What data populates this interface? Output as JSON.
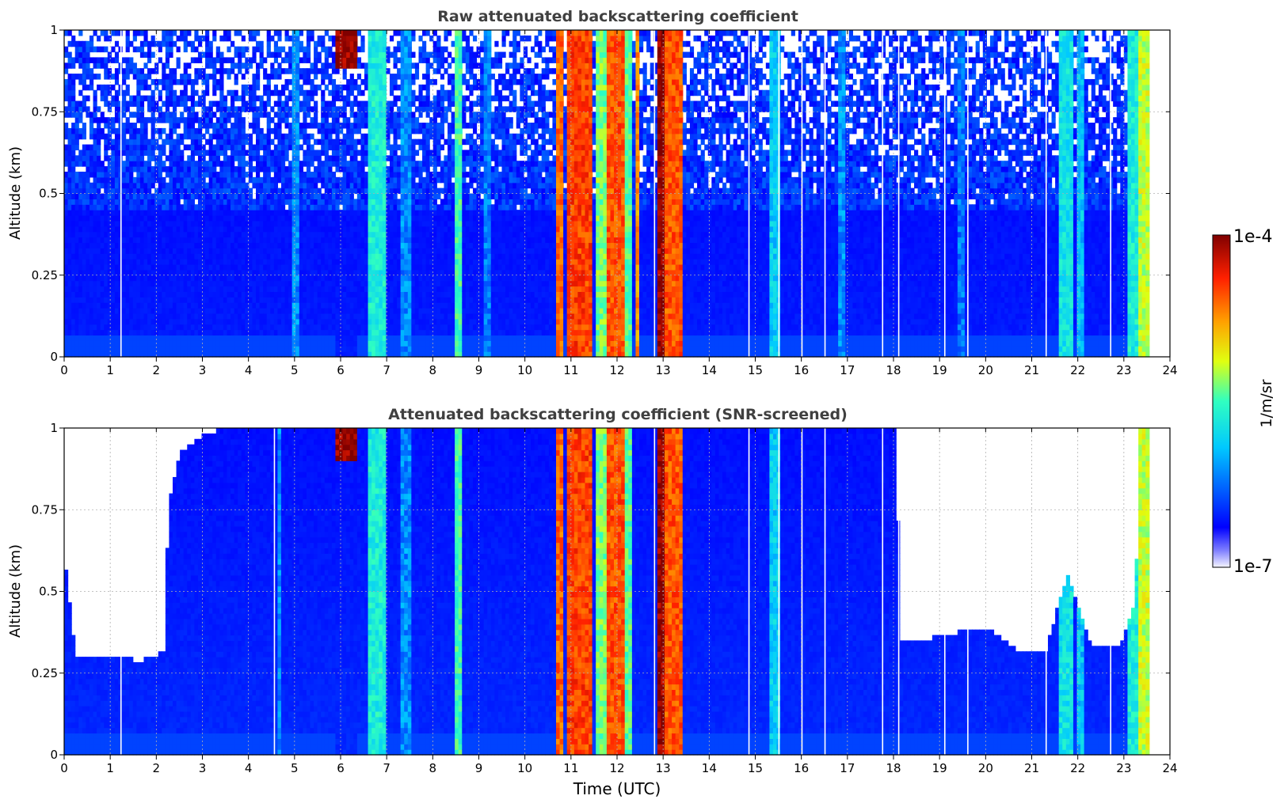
{
  "chart_data": {
    "type": "heatmap",
    "colorbar": {
      "label": "1/m/sr",
      "max_label": "1e-4",
      "min_label": "1e-7",
      "scale": "log",
      "range": [
        1e-07,
        0.0001
      ]
    },
    "panels": [
      {
        "id": "raw",
        "title": "Raw attenuated backscattering coefficient",
        "ylabel": "Altitude (km)",
        "xlabel": "",
        "xlim": [
          0,
          24
        ],
        "ylim": [
          0,
          1
        ],
        "xticks": [
          "0",
          "1",
          "2",
          "3",
          "4",
          "5",
          "6",
          "7",
          "8",
          "9",
          "10",
          "11",
          "12",
          "13",
          "14",
          "15",
          "16",
          "17",
          "18",
          "19",
          "20",
          "21",
          "22",
          "23",
          "24"
        ],
        "yticks": [
          {
            "value": 0,
            "label": "0"
          },
          {
            "value": 0.25,
            "label": "0.25"
          },
          {
            "value": 0.5,
            "label": "0.5"
          },
          {
            "value": 0.75,
            "label": "0.75"
          },
          {
            "value": 1,
            "label": "1"
          }
        ],
        "grid": true,
        "data_end_time": 23.55,
        "background_level": 0.16,
        "noise_onset_altitude": 0.45,
        "features": [
          {
            "t0": 4.95,
            "t1": 5.1,
            "level": 0.3,
            "top": 1.0
          },
          {
            "t0": 5.9,
            "t1": 6.35,
            "level": 0.98,
            "top": 1.0,
            "base": 0.88
          },
          {
            "t0": 6.6,
            "t1": 6.95,
            "level": 0.45,
            "top": 1.0
          },
          {
            "t0": 7.3,
            "t1": 7.5,
            "level": 0.3,
            "top": 1.0
          },
          {
            "t0": 8.45,
            "t1": 8.6,
            "level": 0.5,
            "top": 1.0
          },
          {
            "t0": 9.1,
            "t1": 9.3,
            "level": 0.28,
            "top": 1.0
          },
          {
            "t0": 10.7,
            "t1": 10.85,
            "level": 0.8,
            "top": 1.0
          },
          {
            "t0": 10.9,
            "t1": 11.5,
            "level": 0.84,
            "top": 1.0
          },
          {
            "t0": 11.55,
            "t1": 11.75,
            "level": 0.55,
            "top": 1.0
          },
          {
            "t0": 11.75,
            "t1": 12.15,
            "level": 0.82,
            "top": 1.0
          },
          {
            "t0": 12.15,
            "t1": 12.35,
            "level": 0.52,
            "top": 1.0
          },
          {
            "t0": 12.4,
            "t1": 12.5,
            "level": 0.75,
            "top": 1.0
          },
          {
            "t0": 12.9,
            "t1": 13.0,
            "level": 0.98,
            "top": 1.0
          },
          {
            "t0": 13.05,
            "t1": 13.45,
            "level": 0.82,
            "top": 1.0
          },
          {
            "t0": 15.3,
            "t1": 15.55,
            "level": 0.38,
            "top": 1.0
          },
          {
            "t0": 16.8,
            "t1": 16.95,
            "level": 0.3,
            "top": 1.0
          },
          {
            "t0": 19.4,
            "t1": 19.55,
            "level": 0.28,
            "top": 1.0
          },
          {
            "t0": 21.6,
            "t1": 21.9,
            "level": 0.42,
            "top": 1.0
          },
          {
            "t0": 21.95,
            "t1": 22.15,
            "level": 0.36,
            "top": 1.0
          },
          {
            "t0": 23.05,
            "t1": 23.35,
            "level": 0.45,
            "top": 1.0
          },
          {
            "t0": 23.35,
            "t1": 23.55,
            "level": 0.6,
            "top": 1.0
          }
        ],
        "gaps": [
          1.22,
          12.8,
          14.85,
          15.5,
          16.0,
          16.5,
          17.75,
          18.1,
          19.1,
          19.6,
          21.3,
          22.7
        ]
      },
      {
        "id": "screened",
        "title": "Attenuated backscattering coefficient (SNR-screened)",
        "ylabel": "Altitude (km)",
        "xlabel": "Time (UTC)",
        "xlim": [
          0,
          24
        ],
        "ylim": [
          0,
          1
        ],
        "xticks": [
          "0",
          "1",
          "2",
          "3",
          "4",
          "5",
          "6",
          "7",
          "8",
          "9",
          "10",
          "11",
          "12",
          "13",
          "14",
          "15",
          "16",
          "17",
          "18",
          "19",
          "20",
          "21",
          "22",
          "23",
          "24"
        ],
        "yticks": [
          {
            "value": 0,
            "label": "0"
          },
          {
            "value": 0.25,
            "label": "0.25"
          },
          {
            "value": 0.5,
            "label": "0.5"
          },
          {
            "value": 0.75,
            "label": "0.75"
          },
          {
            "value": 1,
            "label": "1"
          }
        ],
        "grid": true,
        "data_end_time": 23.55,
        "background_level": 0.18,
        "screen_top": [
          {
            "t": 0.0,
            "h": 0.62
          },
          {
            "t": 0.25,
            "h": 0.3
          },
          {
            "t": 1.7,
            "h": 0.29
          },
          {
            "t": 1.95,
            "h": 0.3
          },
          {
            "t": 2.2,
            "h": 0.32
          },
          {
            "t": 2.25,
            "h": 0.75
          },
          {
            "t": 2.5,
            "h": 0.92
          },
          {
            "t": 3.0,
            "h": 0.98
          },
          {
            "t": 3.5,
            "h": 1.0
          },
          {
            "t": 18.05,
            "h": 1.0
          },
          {
            "t": 18.15,
            "h": 0.35
          },
          {
            "t": 19.0,
            "h": 0.36
          },
          {
            "t": 19.5,
            "h": 0.38
          },
          {
            "t": 20.1,
            "h": 0.38
          },
          {
            "t": 20.8,
            "h": 0.31
          },
          {
            "t": 21.3,
            "h": 0.31
          },
          {
            "t": 21.6,
            "h": 0.48
          },
          {
            "t": 21.8,
            "h": 0.55
          },
          {
            "t": 22.0,
            "h": 0.46
          },
          {
            "t": 22.3,
            "h": 0.34
          },
          {
            "t": 22.9,
            "h": 0.33
          },
          {
            "t": 23.2,
            "h": 0.45
          },
          {
            "t": 23.35,
            "h": 0.75
          },
          {
            "t": 23.55,
            "h": 1.0
          }
        ],
        "features": [
          {
            "t0": 4.6,
            "t1": 4.7,
            "level": 0.3,
            "top": 1.0
          },
          {
            "t0": 5.9,
            "t1": 6.35,
            "level": 0.98,
            "top": 1.0,
            "base": 0.9
          },
          {
            "t0": 6.6,
            "t1": 6.95,
            "level": 0.45,
            "top": 1.0
          },
          {
            "t0": 7.3,
            "t1": 7.5,
            "level": 0.3,
            "top": 1.0
          },
          {
            "t0": 8.45,
            "t1": 8.6,
            "level": 0.5,
            "top": 1.0
          },
          {
            "t0": 10.7,
            "t1": 10.85,
            "level": 0.8,
            "top": 1.0
          },
          {
            "t0": 10.9,
            "t1": 11.5,
            "level": 0.84,
            "top": 1.0
          },
          {
            "t0": 11.55,
            "t1": 11.75,
            "level": 0.55,
            "top": 1.0
          },
          {
            "t0": 11.75,
            "t1": 12.15,
            "level": 0.82,
            "top": 1.0
          },
          {
            "t0": 12.15,
            "t1": 12.35,
            "level": 0.52,
            "top": 1.0
          },
          {
            "t0": 12.9,
            "t1": 13.0,
            "level": 0.98,
            "top": 1.0
          },
          {
            "t0": 13.05,
            "t1": 13.45,
            "level": 0.82,
            "top": 1.0
          },
          {
            "t0": 15.3,
            "t1": 15.55,
            "level": 0.38,
            "top": 1.0
          },
          {
            "t0": 21.6,
            "t1": 21.9,
            "level": 0.42,
            "top": 1.0
          },
          {
            "t0": 21.95,
            "t1": 22.15,
            "level": 0.36,
            "top": 1.0
          },
          {
            "t0": 23.05,
            "t1": 23.35,
            "level": 0.45,
            "top": 1.0
          },
          {
            "t0": 23.35,
            "t1": 23.55,
            "level": 0.6,
            "top": 1.0
          }
        ],
        "gaps": [
          1.22,
          4.55,
          12.8,
          14.85,
          15.5,
          16.0,
          16.5,
          17.75,
          18.1,
          19.1,
          19.6,
          21.3,
          22.7
        ]
      }
    ]
  }
}
